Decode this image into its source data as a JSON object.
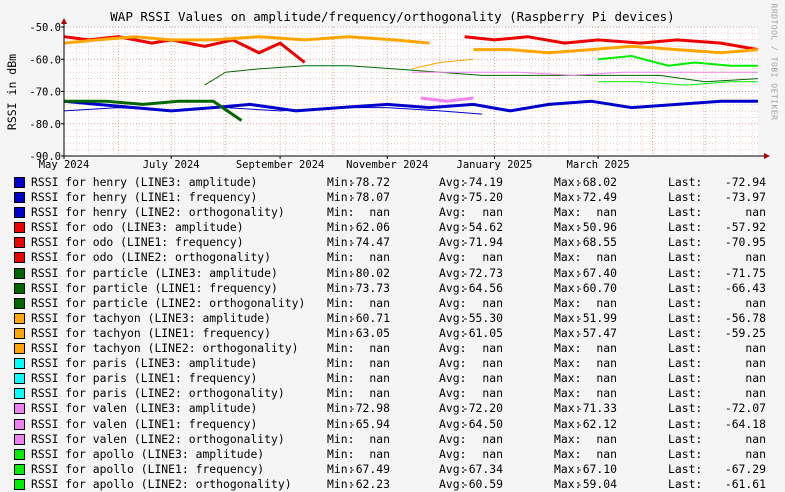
{
  "title": "WAP RSSI Values on amplitude/frequency/orthogonality (Raspberry Pi devices)",
  "watermark": "RRDTOOL / TOBI OETIKER",
  "chart_data": {
    "type": "line",
    "title": "WAP RSSI Values on amplitude/frequency/orthogonality (Raspberry Pi devices)",
    "ylabel": "RSSI in dBm",
    "xlabel": "",
    "ylim": [
      -90,
      -50
    ],
    "yticks": [
      "-50.0",
      "-60.0",
      "-70.0",
      "-80.0",
      "-90.0"
    ],
    "x_range": [
      "2024-05-01",
      "2025-05-31"
    ],
    "xticks": [
      "May 2024",
      "July 2024",
      "September 2024",
      "November 2024",
      "January 2025",
      "March 2025"
    ],
    "xtick_dates": [
      "2024-05-01",
      "2024-07-01",
      "2024-09-01",
      "2024-11-01",
      "2025-01-01",
      "2025-03-01"
    ],
    "grid": true,
    "colors": {
      "henry": "#0000cc",
      "odo": "#ee0000",
      "particle": "#006600",
      "tachyon": "#ffa500",
      "paris": "#00ffff",
      "valen": "#ee82ee",
      "apollo": "#00ee00",
      "background": "#ffffff",
      "grid_minor": "#f0b0b0",
      "grid_major": "#d09090"
    },
    "series": [
      {
        "name": "RSSI for henry (LINE3: amplitude)",
        "device": "henry",
        "width": 3,
        "x": [
          "2024-05-01",
          "2024-05-20",
          "2024-06-10",
          "2024-07-01",
          "2024-07-25",
          "2024-08-15",
          "2024-09-10",
          "2024-10-05",
          "2024-11-01",
          "2024-11-25",
          "2024-12-20",
          "2025-01-10",
          "2025-02-01",
          "2025-02-25",
          "2025-03-20",
          "2025-04-15",
          "2025-05-10",
          "2025-05-31"
        ],
        "y": [
          -73,
          -74,
          -75,
          -76,
          -75,
          -74,
          -76,
          -75,
          -74,
          -75,
          -74,
          -76,
          -74,
          -73,
          -75,
          -74,
          -73,
          -73
        ]
      },
      {
        "name": "RSSI for henry (LINE1: frequency)",
        "device": "henry",
        "width": 1,
        "x": [
          "2024-05-01",
          "2024-06-01",
          "2024-07-01",
          "2024-08-01",
          "2024-09-01",
          "2024-10-01",
          "2024-11-01",
          "2024-12-01",
          "2024-12-25"
        ],
        "y": [
          -76,
          -75,
          -76,
          -75,
          -76,
          -75,
          -75,
          -76,
          -77
        ]
      },
      {
        "name": "RSSI for odo (LINE3: amplitude)",
        "device": "odo",
        "width": 3,
        "x": [
          "2024-05-01",
          "2024-05-15",
          "2024-06-01",
          "2024-06-20",
          "2024-07-01",
          "2024-07-20",
          "2024-08-05",
          "2024-08-20",
          "2024-09-01",
          "2024-09-15"
        ],
        "y": [
          -53,
          -54,
          -53,
          -55,
          -54,
          -56,
          -54,
          -58,
          -55,
          -61
        ]
      },
      {
        "name": "RSSI for odo (LINE3: amplitude) late",
        "device": "odo",
        "width": 3,
        "x": [
          "2024-12-15",
          "2025-01-01",
          "2025-01-20",
          "2025-02-10",
          "2025-03-01",
          "2025-03-25",
          "2025-04-15",
          "2025-05-10",
          "2025-05-31"
        ],
        "y": [
          -53,
          -54,
          -53,
          -55,
          -54,
          -55,
          -54,
          -55,
          -57
        ]
      },
      {
        "name": "RSSI for particle (LINE3: amplitude)",
        "device": "particle",
        "width": 3,
        "x": [
          "2024-05-01",
          "2024-05-25",
          "2024-06-15",
          "2024-07-05",
          "2024-07-25",
          "2024-08-10"
        ],
        "y": [
          -73,
          -73,
          -74,
          -73,
          -73,
          -79
        ]
      },
      {
        "name": "RSSI for particle (LINE1: frequency)",
        "device": "particle",
        "width": 1,
        "x": [
          "2024-07-20",
          "2024-08-01",
          "2024-08-20",
          "2024-09-15",
          "2024-10-10",
          "2024-11-05",
          "2024-12-01",
          "2024-12-25",
          "2025-01-20",
          "2025-02-15",
          "2025-03-10",
          "2025-04-05",
          "2025-05-01",
          "2025-05-31"
        ],
        "y": [
          -68,
          -64,
          -63,
          -62,
          -62,
          -63,
          -64,
          -65,
          -65,
          -65,
          -65,
          -65,
          -67,
          -66
        ]
      },
      {
        "name": "RSSI for tachyon (LINE3: amplitude)",
        "device": "tachyon",
        "width": 3,
        "x": [
          "2024-05-01",
          "2024-05-20",
          "2024-06-10",
          "2024-07-01",
          "2024-07-25",
          "2024-08-20",
          "2024-09-15",
          "2024-10-10",
          "2024-11-05",
          "2024-11-25"
        ],
        "y": [
          -55,
          -54,
          -53,
          -54,
          -54,
          -53,
          -54,
          -53,
          -54,
          -55
        ]
      },
      {
        "name": "RSSI for tachyon (LINE3: amplitude) late",
        "device": "tachyon",
        "width": 3,
        "x": [
          "2024-12-20",
          "2025-01-10",
          "2025-02-01",
          "2025-02-25",
          "2025-03-20",
          "2025-04-15",
          "2025-05-10",
          "2025-05-31"
        ],
        "y": [
          -57,
          -57,
          -58,
          -57,
          -56,
          -57,
          -58,
          -57
        ]
      },
      {
        "name": "RSSI for tachyon (LINE1: frequency)",
        "device": "tachyon",
        "width": 1,
        "x": [
          "2024-11-15",
          "2024-12-01",
          "2024-12-20"
        ],
        "y": [
          -63,
          -61,
          -60
        ]
      },
      {
        "name": "RSSI for valen (LINE3: amplitude)",
        "device": "valen",
        "width": 3,
        "x": [
          "2024-11-20",
          "2024-12-05",
          "2024-12-20"
        ],
        "y": [
          -72,
          -73,
          -72
        ]
      },
      {
        "name": "RSSI for valen (LINE1: frequency)",
        "device": "valen",
        "width": 1,
        "x": [
          "2024-11-15",
          "2024-12-15",
          "2025-01-15",
          "2025-02-15",
          "2025-03-15",
          "2025-04-15",
          "2025-05-15",
          "2025-05-31"
        ],
        "y": [
          -64,
          -64,
          -64,
          -65,
          -64,
          -64,
          -64,
          -64
        ]
      },
      {
        "name": "RSSI for apollo (LINE1: frequency)",
        "device": "apollo",
        "width": 1,
        "x": [
          "2025-03-01",
          "2025-03-25",
          "2025-04-20",
          "2025-05-15",
          "2025-05-31"
        ],
        "y": [
          -67,
          -67,
          -68,
          -67,
          -67
        ]
      },
      {
        "name": "RSSI for apollo (LINE2: orthogonality)",
        "device": "apollo",
        "width": 2,
        "x": [
          "2025-03-01",
          "2025-03-20",
          "2025-04-10",
          "2025-04-25",
          "2025-05-15",
          "2025-05-31"
        ],
        "y": [
          -60,
          -59,
          -62,
          -61,
          -62,
          -62
        ]
      }
    ]
  },
  "legend": {
    "labels": {
      "min": "Min:",
      "avg": "Avg:",
      "max": "Max:",
      "last": "Last:"
    },
    "rows": [
      {
        "device": "henry",
        "name": "RSSI for henry (LINE3: amplitude)",
        "min": "-78.72",
        "avg": "-74.19",
        "max": "-68.02",
        "last": "-72.94"
      },
      {
        "device": "henry",
        "name": "RSSI for henry (LINE1: frequency)",
        "min": "-78.07",
        "avg": "-75.20",
        "max": "-72.49",
        "last": "-73.97"
      },
      {
        "device": "henry",
        "name": "RSSI for henry (LINE2: orthogonality)",
        "min": "nan",
        "avg": "nan",
        "max": "nan",
        "last": "nan"
      },
      {
        "device": "odo",
        "name": "RSSI for odo (LINE3: amplitude)",
        "min": "-62.06",
        "avg": "-54.62",
        "max": "-50.96",
        "last": "-57.92"
      },
      {
        "device": "odo",
        "name": "RSSI for odo (LINE1: frequency)",
        "min": "-74.47",
        "avg": "-71.94",
        "max": "-68.55",
        "last": "-70.95"
      },
      {
        "device": "odo",
        "name": "RSSI for odo (LINE2: orthogonality)",
        "min": "nan",
        "avg": "nan",
        "max": "nan",
        "last": "nan"
      },
      {
        "device": "particle",
        "name": "RSSI for particle (LINE3: amplitude)",
        "min": "-80.02",
        "avg": "-72.73",
        "max": "-67.40",
        "last": "-71.75"
      },
      {
        "device": "particle",
        "name": "RSSI for particle (LINE1: frequency)",
        "min": "-73.73",
        "avg": "-64.56",
        "max": "-60.70",
        "last": "-66.43"
      },
      {
        "device": "particle",
        "name": "RSSI for particle (LINE2: orthogonality)",
        "min": "nan",
        "avg": "nan",
        "max": "nan",
        "last": "nan"
      },
      {
        "device": "tachyon",
        "name": "RSSI for tachyon (LINE3: amplitude)",
        "min": "-60.71",
        "avg": "-55.30",
        "max": "-51.99",
        "last": "-56.78"
      },
      {
        "device": "tachyon",
        "name": "RSSI for tachyon (LINE1: frequency)",
        "min": "-63.05",
        "avg": "-61.05",
        "max": "-57.47",
        "last": "-59.25"
      },
      {
        "device": "tachyon",
        "name": "RSSI for tachyon (LINE2: orthogonality)",
        "min": "nan",
        "avg": "nan",
        "max": "nan",
        "last": "nan"
      },
      {
        "device": "paris",
        "name": "RSSI for paris (LINE3: amplitude)",
        "min": "nan",
        "avg": "nan",
        "max": "nan",
        "last": "nan"
      },
      {
        "device": "paris",
        "name": "RSSI for paris (LINE1: frequency)",
        "min": "nan",
        "avg": "nan",
        "max": "nan",
        "last": "nan"
      },
      {
        "device": "paris",
        "name": "RSSI for paris (LINE2: orthogonality)",
        "min": "nan",
        "avg": "nan",
        "max": "nan",
        "last": "nan"
      },
      {
        "device": "valen",
        "name": "RSSI for valen (LINE3: amplitude)",
        "min": "-72.98",
        "avg": "-72.20",
        "max": "-71.33",
        "last": "-72.07"
      },
      {
        "device": "valen",
        "name": "RSSI for valen (LINE1: frequency)",
        "min": "-65.94",
        "avg": "-64.50",
        "max": "-62.12",
        "last": "-64.18"
      },
      {
        "device": "valen",
        "name": "RSSI for valen (LINE2: orthogonality)",
        "min": "nan",
        "avg": "nan",
        "max": "nan",
        "last": "nan"
      },
      {
        "device": "apollo",
        "name": "RSSI for apollo (LINE3: amplitude)",
        "min": "nan",
        "avg": "nan",
        "max": "nan",
        "last": "nan"
      },
      {
        "device": "apollo",
        "name": "RSSI for apollo (LINE1: frequency)",
        "min": "-67.49",
        "avg": "-67.34",
        "max": "-67.10",
        "last": "-67.29"
      },
      {
        "device": "apollo",
        "name": "RSSI for apollo (LINE2: orthogonality)",
        "min": "-62.23",
        "avg": "-60.59",
        "max": "-59.04",
        "last": "-61.61"
      }
    ]
  }
}
